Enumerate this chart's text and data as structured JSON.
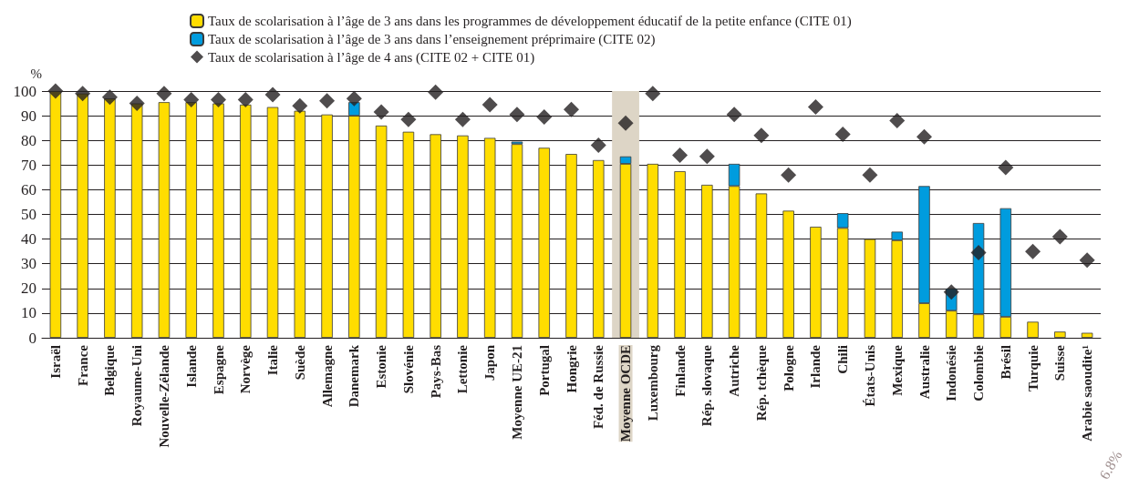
{
  "chart_data": {
    "type": "bar",
    "stacked": true,
    "ylabel": "%",
    "categories": [
      "Israël",
      "France",
      "Belgique",
      "Royaume-Uni",
      "Nouvelle-Zélande",
      "Islande",
      "Espagne",
      "Norvège",
      "Italie",
      "Suède",
      "Allemagne",
      "Danemark",
      "Estonie",
      "Slovénie",
      "Pays-Bas",
      "Lettonie",
      "Japon",
      "Moyenne UE-21",
      "Portugal",
      "Hongrie",
      "Féd. de Russie",
      "Moyenne OCDE",
      "Luxembourg",
      "Finlande",
      "Rép. slovaque",
      "Autriche",
      "Rép. tchèque",
      "Pologne",
      "Irlande",
      "Chili",
      "États-Unis",
      "Mexique",
      "Australie",
      "Indonésie",
      "Colombie",
      "Brésil",
      "Turquie",
      "Suisse",
      "Arabie saoudite¹"
    ],
    "series": [
      {
        "name": "Taux de scolarisation à l’âge de 3 ans dans les programmes de développement éducatif de la petite enfance (CITE 01)",
        "color": "#ffdd00",
        "values": [
          100,
          99,
          97,
          95,
          95.5,
          95.5,
          95,
          94.5,
          93.5,
          92,
          90.5,
          90,
          86,
          83.5,
          82.5,
          82,
          81,
          78.5,
          77,
          74.5,
          72,
          70.5,
          70.5,
          67.5,
          62,
          61.5,
          58.5,
          51.5,
          45,
          44.5,
          40,
          39.5,
          14,
          11,
          9.5,
          8.5,
          6.5,
          2.5,
          2
        ]
      },
      {
        "name": "Taux de scolarisation à l’âge de 3 ans dans l’enseignement préprimaire (CITE 02)",
        "color": "#009cde",
        "values": [
          null,
          null,
          null,
          null,
          null,
          null,
          null,
          null,
          null,
          null,
          null,
          5.5,
          null,
          null,
          null,
          null,
          null,
          1,
          null,
          null,
          null,
          3,
          null,
          null,
          null,
          9,
          null,
          null,
          null,
          6,
          null,
          3.5,
          47.5,
          9,
          37,
          44,
          null,
          null,
          null
        ]
      },
      {
        "name": "Taux de scolarisation à l’âge de 4 ans (CITE 02 + CITE 01)",
        "type": "scatter",
        "color": "#231f20",
        "x": [
          "Israël",
          "France",
          "Belgique",
          "Royaume-Uni",
          "Nouvelle-Zélande",
          "Islande",
          "Espagne",
          "Norvège",
          "Italie",
          "Suède",
          "Allemagne",
          "Danemark",
          "Estonie",
          "Slovénie",
          "Pays-Bas",
          "Lettonie",
          "Japon",
          "Moyenne UE-21",
          "Portugal",
          "Hongrie",
          "Féd. de Russie",
          "Moyenne OCDE",
          "Luxembourg",
          "Finlande",
          "Rép. slovaque",
          "Autriche",
          "Rép. tchèque",
          "Pologne",
          "Irlande",
          "Chili",
          "États-Unis",
          "Mexique",
          "Australie",
          "Indonésie",
          "Colombie",
          "Brésil",
          "Turquie",
          "Suisse",
          "Arabie saoudite¹"
        ],
        "values": [
          100,
          99,
          97.5,
          95,
          99,
          96.5,
          96.5,
          96.5,
          98.5,
          94,
          96,
          97,
          91.5,
          88.5,
          99.5,
          88.5,
          94.5,
          90.5,
          89.5,
          92.5,
          78,
          87,
          99,
          74,
          73.5,
          90.5,
          82,
          66,
          93.5,
          82.5,
          66,
          88,
          81.5,
          18.5,
          34.5,
          69,
          35,
          41,
          31.5
        ]
      }
    ],
    "marker": "diamond",
    "ylim": [
      0,
      100
    ],
    "yticks": [
      0,
      10,
      20,
      30,
      40,
      50,
      60,
      70,
      80,
      90,
      100
    ],
    "grid": "y",
    "legend": "top",
    "bands": [
      {
        "axis": "x",
        "from": "Moyenne OCDE",
        "to": "Moyenne OCDE",
        "color": "#ddd5c6"
      }
    ],
    "annotations": [
      "6.8%"
    ]
  }
}
